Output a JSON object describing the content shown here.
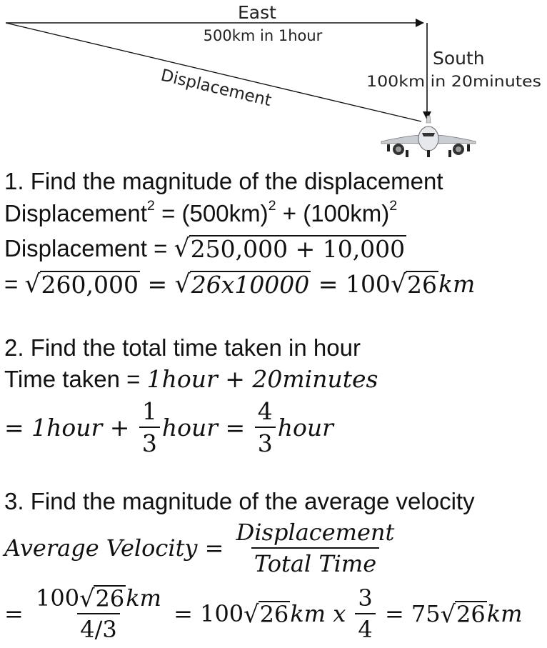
{
  "diagram": {
    "east_label": "East",
    "east_detail": "500km in 1hour",
    "south_label": "South",
    "south_detail": "100km in 20minutes",
    "displacement_label": "Displacement",
    "airplane": "airplane-icon"
  },
  "step1": {
    "heading": "1. Find the magnitude of the displacement",
    "line1_lhs": "Displacement",
    "line1_exp": "2",
    "line1_eq": " = (500km)",
    "line1_exp2": "2",
    "line1_plus": " + (100km)",
    "line1_exp3": "2",
    "line2_lhs": "Displacement = ",
    "line2_rad": "250,000 + 10,000",
    "line3_eq": "= ",
    "line3_rad1": "260,000",
    "line3_eq2": " = ",
    "line3_rad2": "26x10000",
    "line3_eq3": " = 100",
    "line3_rad3": "26",
    "line3_unit": "km"
  },
  "step2": {
    "heading": "2. Find the total time taken in hour",
    "line1_lhs": "Time taken = ",
    "line1_rhs": "1hour + 20minutes",
    "line2_a": "= 1hour + ",
    "frac1_num": "1",
    "frac1_den": "3",
    "line2_b": "hour = ",
    "frac2_num": "4",
    "frac2_den": "3",
    "line2_c": "hour"
  },
  "step3": {
    "heading": "3. Find the magnitude of the average velocity",
    "formula_lhs": "Average Velocity = ",
    "formula_num": "Displacement",
    "formula_den": "Total Time",
    "line2_eq": "= ",
    "frac_num_a": "100",
    "frac_num_rad": "26",
    "frac_num_unit": "km",
    "frac_den": "4/3",
    "line2_mid_a": " = 100",
    "line2_mid_rad": "26",
    "line2_mid_b": "km x ",
    "frac2_num": "3",
    "frac2_den": "4",
    "line2_end_a": " = 75",
    "line2_end_rad": "26",
    "line2_end_b": "km"
  }
}
